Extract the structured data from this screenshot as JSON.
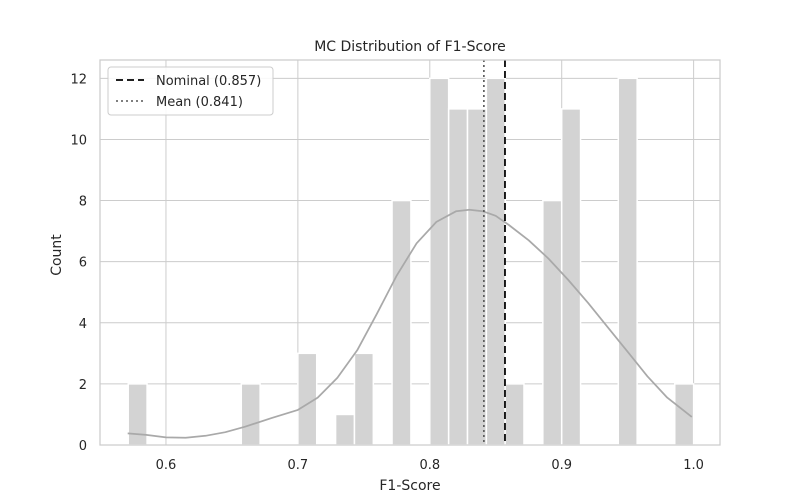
{
  "chart_data": {
    "type": "bar",
    "subtype": "histogram-with-kde",
    "title": "MC Distribution of F1-Score",
    "xlabel": "F1-Score",
    "ylabel": "Count",
    "xlim": [
      0.55,
      1.02
    ],
    "ylim": [
      0,
      12.6
    ],
    "xticks": [
      0.6,
      0.7,
      0.8,
      0.9,
      1.0
    ],
    "xtick_labels": [
      "0.6",
      "0.7",
      "0.8",
      "0.9",
      "1.0"
    ],
    "yticks": [
      0,
      2,
      4,
      6,
      8,
      10,
      12
    ],
    "ytick_labels": [
      "0",
      "2",
      "4",
      "6",
      "8",
      "10",
      "12"
    ],
    "grid": true,
    "bin_width": 0.0143,
    "bins": [
      {
        "x0": 0.5714,
        "count": 2
      },
      {
        "x0": 0.6571,
        "count": 2
      },
      {
        "x0": 0.7,
        "count": 3
      },
      {
        "x0": 0.7286,
        "count": 1
      },
      {
        "x0": 0.7429,
        "count": 3
      },
      {
        "x0": 0.7714,
        "count": 8
      },
      {
        "x0": 0.8,
        "count": 12
      },
      {
        "x0": 0.8143,
        "count": 11
      },
      {
        "x0": 0.8286,
        "count": 11
      },
      {
        "x0": 0.8429,
        "count": 12
      },
      {
        "x0": 0.8571,
        "count": 2
      },
      {
        "x0": 0.8857,
        "count": 8
      },
      {
        "x0": 0.9,
        "count": 11
      },
      {
        "x0": 0.9429,
        "count": 12
      },
      {
        "x0": 0.9857,
        "count": 2
      }
    ],
    "kde": {
      "x": [
        0.571,
        0.585,
        0.6,
        0.615,
        0.63,
        0.645,
        0.66,
        0.68,
        0.7,
        0.715,
        0.73,
        0.745,
        0.76,
        0.775,
        0.79,
        0.805,
        0.82,
        0.83,
        0.84,
        0.85,
        0.86,
        0.875,
        0.89,
        0.905,
        0.92,
        0.935,
        0.95,
        0.965,
        0.98,
        0.9986
      ],
      "y": [
        0.38,
        0.33,
        0.25,
        0.24,
        0.3,
        0.42,
        0.6,
        0.88,
        1.15,
        1.55,
        2.2,
        3.1,
        4.3,
        5.55,
        6.6,
        7.3,
        7.65,
        7.7,
        7.65,
        7.5,
        7.2,
        6.7,
        6.1,
        5.4,
        4.65,
        3.85,
        3.05,
        2.25,
        1.55,
        0.92
      ]
    },
    "reference_lines": [
      {
        "name": "Nominal (0.857)",
        "x": 0.857,
        "style": "dashed",
        "color": "#000000"
      },
      {
        "name": "Mean (0.841)",
        "x": 0.841,
        "style": "dotted",
        "color": "#555555"
      }
    ],
    "legend": {
      "placement": "top-left"
    },
    "colors": {
      "bar": "#d3d3d3",
      "bar_edge": "#ffffff",
      "kde": "#a9a9a9",
      "grid": "#cccccc",
      "axes_edge": "#cccccc"
    }
  }
}
